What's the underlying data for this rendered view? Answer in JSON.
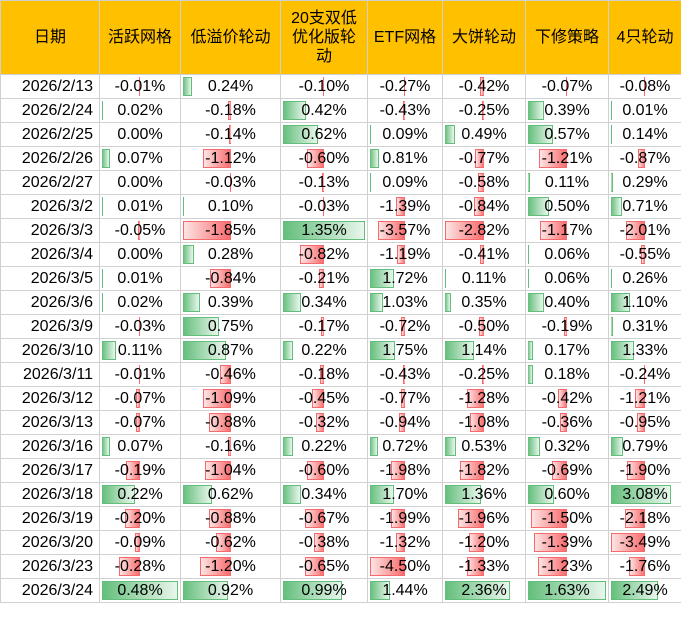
{
  "colors": {
    "header_bg": "#ffc000",
    "positive": "#63be7b",
    "negative": "#f8696b"
  },
  "table": {
    "headers": [
      "日期",
      "活跃网格",
      "低溢价轮动",
      "20支双低优化版轮动",
      "ETF网格",
      "大饼轮动",
      "下修策略",
      "4只轮动"
    ],
    "rows": [
      {
        "date": "2026/2/13",
        "values": [
          "-0.01%",
          "0.24%",
          "-0.10%",
          "-0.27%",
          "-0.42%",
          "-0.07%",
          "-0.08%"
        ]
      },
      {
        "date": "2026/2/24",
        "values": [
          "0.02%",
          "-0.18%",
          "0.42%",
          "-0.43%",
          "-0.25%",
          "0.39%",
          "0.01%"
        ]
      },
      {
        "date": "2026/2/25",
        "values": [
          "0.00%",
          "-0.14%",
          "0.62%",
          "0.09%",
          "0.49%",
          "0.57%",
          "0.14%"
        ]
      },
      {
        "date": "2026/2/26",
        "values": [
          "0.07%",
          "-1.12%",
          "-0.60%",
          "0.81%",
          "-0.77%",
          "-1.21%",
          "-0.87%"
        ]
      },
      {
        "date": "2026/2/27",
        "values": [
          "0.00%",
          "-0.03%",
          "-0.13%",
          "0.09%",
          "-0.58%",
          "0.11%",
          "0.29%"
        ]
      },
      {
        "date": "2026/3/2",
        "values": [
          "0.01%",
          "0.10%",
          "-0.03%",
          "-1.39%",
          "-0.84%",
          "0.50%",
          "0.71%"
        ]
      },
      {
        "date": "2026/3/3",
        "values": [
          "-0.05%",
          "-1.85%",
          "1.35%",
          "-3.57%",
          "-2.82%",
          "-1.17%",
          "-2.01%"
        ]
      },
      {
        "date": "2026/3/4",
        "values": [
          "0.00%",
          "0.28%",
          "-0.82%",
          "-1.19%",
          "-0.41%",
          "0.06%",
          "-0.55%"
        ]
      },
      {
        "date": "2026/3/5",
        "values": [
          "0.01%",
          "-0.84%",
          "-0.21%",
          "1.72%",
          "0.11%",
          "0.06%",
          "0.26%"
        ]
      },
      {
        "date": "2026/3/6",
        "values": [
          "0.02%",
          "0.39%",
          "0.34%",
          "1.03%",
          "0.35%",
          "0.40%",
          "1.10%"
        ]
      },
      {
        "date": "2026/3/9",
        "values": [
          "-0.03%",
          "0.75%",
          "-0.17%",
          "-0.72%",
          "-0.50%",
          "-0.19%",
          "0.31%"
        ]
      },
      {
        "date": "2026/3/10",
        "values": [
          "0.11%",
          "0.87%",
          "0.22%",
          "1.75%",
          "1.14%",
          "0.17%",
          "1.33%"
        ]
      },
      {
        "date": "2026/3/11",
        "values": [
          "-0.01%",
          "-0.46%",
          "-0.18%",
          "-0.43%",
          "-0.25%",
          "0.18%",
          "-0.24%"
        ]
      },
      {
        "date": "2026/3/12",
        "values": [
          "-0.07%",
          "-1.09%",
          "-0.45%",
          "-0.77%",
          "-1.28%",
          "-0.42%",
          "-1.21%"
        ]
      },
      {
        "date": "2026/3/13",
        "values": [
          "-0.07%",
          "-0.88%",
          "-0.32%",
          "-0.94%",
          "-1.08%",
          "-0.36%",
          "-0.95%"
        ]
      },
      {
        "date": "2026/3/16",
        "values": [
          "0.07%",
          "-0.16%",
          "0.22%",
          "0.72%",
          "0.53%",
          "0.32%",
          "0.79%"
        ]
      },
      {
        "date": "2026/3/17",
        "values": [
          "-0.19%",
          "-1.04%",
          "-0.60%",
          "-1.98%",
          "-1.82%",
          "-0.69%",
          "-1.90%"
        ]
      },
      {
        "date": "2026/3/18",
        "values": [
          "0.22%",
          "0.62%",
          "0.34%",
          "1.70%",
          "1.36%",
          "0.60%",
          "3.08%"
        ]
      },
      {
        "date": "2026/3/19",
        "values": [
          "-0.20%",
          "-0.88%",
          "-0.67%",
          "-1.99%",
          "-1.96%",
          "-1.50%",
          "-2.18%"
        ]
      },
      {
        "date": "2026/3/20",
        "values": [
          "-0.09%",
          "-0.62%",
          "-0.38%",
          "-1.32%",
          "-1.20%",
          "-1.39%",
          "-3.49%"
        ]
      },
      {
        "date": "2026/3/23",
        "values": [
          "-0.28%",
          "-1.20%",
          "-0.65%",
          "-4.50%",
          "-1.33%",
          "-1.23%",
          "-1.76%"
        ]
      },
      {
        "date": "2026/3/24",
        "values": [
          "0.48%",
          "0.92%",
          "0.99%",
          "1.44%",
          "2.36%",
          "1.63%",
          "2.49%"
        ]
      }
    ]
  }
}
